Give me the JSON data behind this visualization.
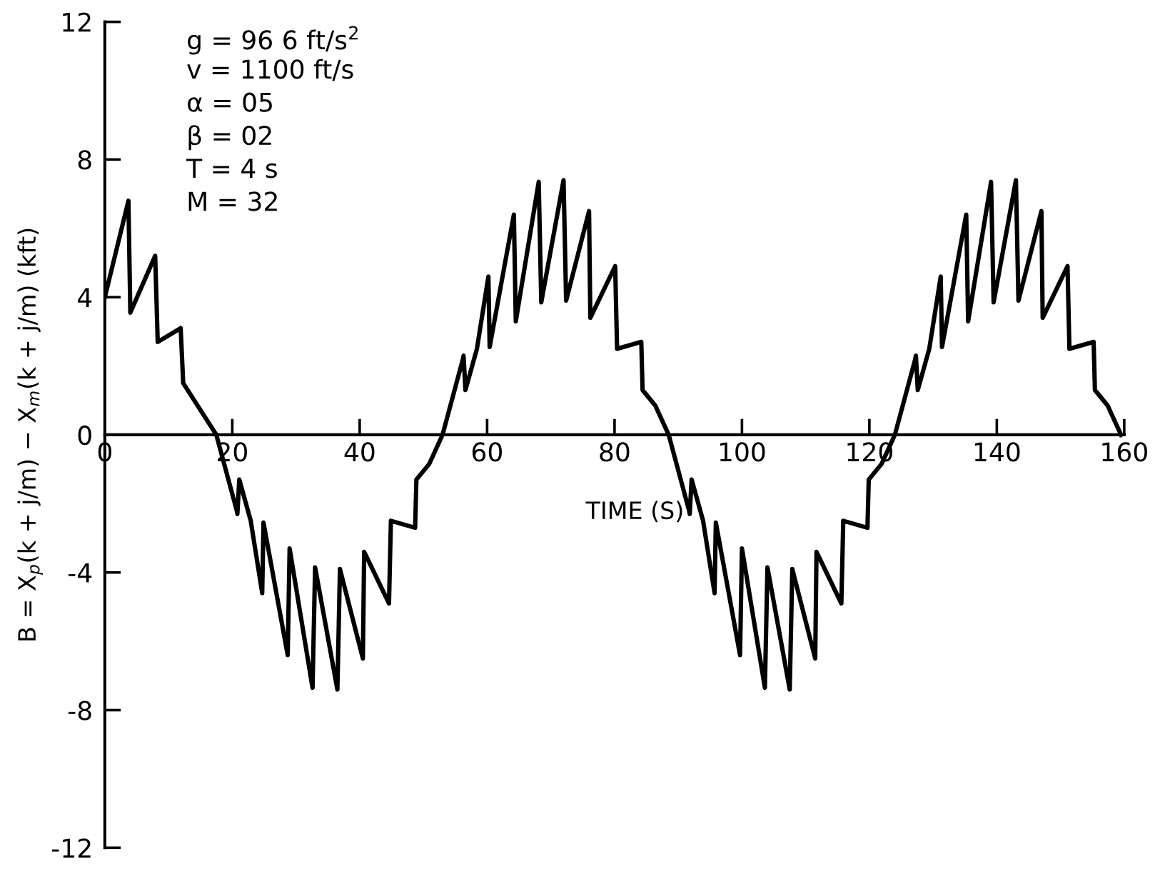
{
  "chart_data": {
    "type": "line",
    "xlabel": "TIME (S)",
    "ylabel": "B = X$_{p}$(k + j/m) − X$_{m}$(k + j/m) (kft)",
    "annotations": [
      "g = 96 6 ft/s$^{2}$",
      "v = 1100 ft/s",
      "α = 05",
      "β = 02",
      "T = 4 s",
      "M = 32"
    ],
    "xlim": [
      0,
      160
    ],
    "ylim": [
      -12,
      12
    ],
    "xticks": [
      0,
      20,
      40,
      60,
      80,
      100,
      120,
      140,
      160
    ],
    "yticks": [
      -12,
      -8,
      -4,
      0,
      4,
      8,
      12
    ],
    "grid": false,
    "legend": false,
    "marker": "none",
    "line_style": "solid",
    "series": [
      {
        "color": "#000000",
        "x": [
          0,
          3.7,
          4.0,
          7.9,
          8.3,
          11.9,
          12.3,
          17.5,
          20.7,
          20.8,
          21.1,
          22.9,
          24.7,
          24.9,
          28.7,
          29.0,
          32.6,
          33.0,
          36.5,
          36.9,
          40.5,
          40.7,
          44.6,
          44.9,
          48.7,
          48.9,
          50.9,
          53.0,
          56.2,
          56.3,
          56.6,
          58.4,
          60.2,
          60.4,
          64.2,
          64.5,
          68.1,
          68.5,
          72.0,
          72.4,
          76.0,
          76.2,
          80.1,
          80.4,
          84.2,
          84.4,
          86.4,
          88.5,
          91.7,
          91.8,
          92.1,
          93.9,
          95.7,
          95.9,
          99.7,
          100.0,
          103.6,
          104.0,
          107.5,
          107.9,
          111.5,
          111.7,
          115.6,
          115.9,
          119.7,
          119.9,
          121.9,
          124.0,
          127.2,
          127.3,
          127.6,
          129.4,
          131.2,
          131.4,
          135.2,
          135.5,
          139.1,
          139.5,
          143.0,
          143.4,
          147.0,
          147.2,
          151.1,
          151.4,
          155.2,
          155.4,
          157.4,
          159.5
        ],
        "values": [
          4.0,
          6.8,
          3.55,
          5.2,
          2.7,
          3.1,
          1.5,
          0,
          -2.2,
          -2.3,
          -1.3,
          -2.5,
          -4.6,
          -2.55,
          -6.4,
          -3.3,
          -7.35,
          -3.85,
          -7.4,
          -3.9,
          -6.5,
          -3.4,
          -4.9,
          -2.5,
          -2.7,
          -1.3,
          -0.85,
          0,
          2.2,
          2.3,
          1.3,
          2.5,
          4.6,
          2.55,
          6.4,
          3.3,
          7.35,
          3.85,
          7.4,
          3.9,
          6.5,
          3.4,
          4.9,
          2.5,
          2.7,
          1.3,
          0.85,
          0,
          -2.2,
          -2.3,
          -1.3,
          -2.5,
          -4.6,
          -2.55,
          -6.4,
          -3.3,
          -7.35,
          -3.85,
          -7.4,
          -3.9,
          -6.5,
          -3.4,
          -4.9,
          -2.5,
          -2.7,
          -1.3,
          -0.85,
          0,
          2.2,
          2.3,
          1.3,
          2.5,
          4.6,
          2.55,
          6.4,
          3.3,
          7.35,
          3.85,
          7.4,
          3.9,
          6.5,
          3.4,
          4.9,
          2.5,
          2.7,
          1.3,
          0.85,
          0
        ]
      }
    ]
  }
}
